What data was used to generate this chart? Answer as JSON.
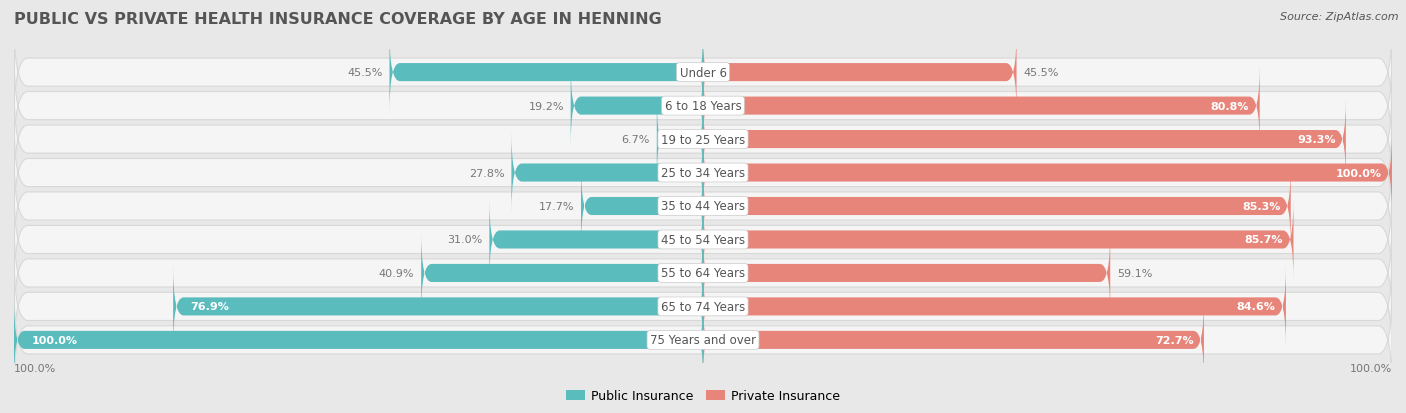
{
  "title": "PUBLIC VS PRIVATE HEALTH INSURANCE COVERAGE BY AGE IN HENNING",
  "source": "Source: ZipAtlas.com",
  "categories": [
    "Under 6",
    "6 to 18 Years",
    "19 to 25 Years",
    "25 to 34 Years",
    "35 to 44 Years",
    "45 to 54 Years",
    "55 to 64 Years",
    "65 to 74 Years",
    "75 Years and over"
  ],
  "public": [
    45.5,
    19.2,
    6.7,
    27.8,
    17.7,
    31.0,
    40.9,
    76.9,
    100.0
  ],
  "private": [
    45.5,
    80.8,
    93.3,
    100.0,
    85.3,
    85.7,
    59.1,
    84.6,
    72.7
  ],
  "public_color": "#5bbcbd",
  "private_color": "#e8857a",
  "fig_bg_color": "#e8e8e8",
  "row_bg_color": "#f5f5f5",
  "row_border_color": "#d8d8d8",
  "title_color": "#555555",
  "label_color": "#555555",
  "value_color_inside": "#ffffff",
  "value_color_outside": "#777777",
  "title_fontsize": 11.5,
  "label_fontsize": 8.5,
  "value_fontsize": 8,
  "source_fontsize": 8,
  "legend_fontsize": 9,
  "inside_threshold_pub": 50,
  "inside_threshold_priv": 60
}
